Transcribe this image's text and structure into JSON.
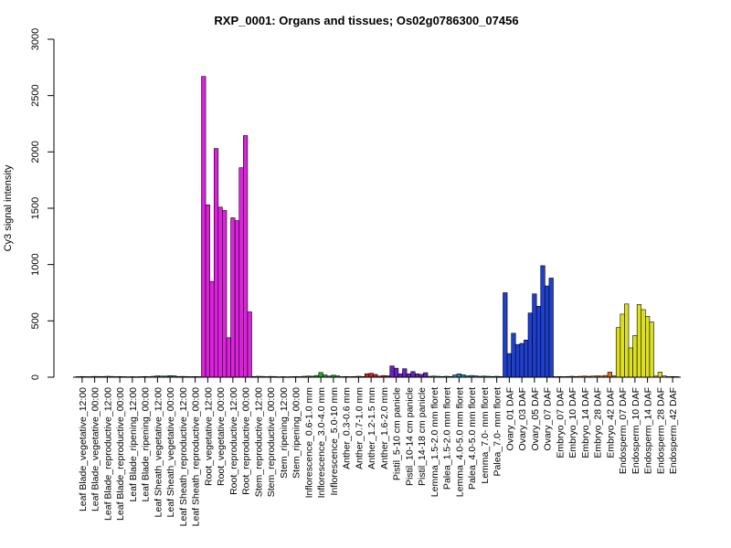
{
  "chart_data": {
    "type": "bar",
    "title": "RXP_0001: Organs and tissues; Os02g0786300_07456",
    "ylabel": "Cy3 signal intensity",
    "xlabel": "",
    "ylim": [
      0,
      3000
    ],
    "yticks": [
      0,
      500,
      1000,
      1500,
      2000,
      2500,
      3000
    ],
    "grid": false,
    "group_labels": [
      "Leaf Blade_vegetative_12:00",
      "Leaf Blade_vegetative_00:00",
      "Leaf Blade_reproductive_12:00",
      "Leaf Blade_reproductive_00:00",
      "Leaf Blade_ripening_12:00",
      "Leaf Blade_ripening_00:00",
      "Leaf Sheath_vegetative_12:00",
      "Leaf Sheath_vegetative_00:00",
      "Leaf Sheath_reproductive_12:00",
      "Leaf Sheath_reproductive_00:00",
      "Root_vegetative_12:00",
      "Root_vegetative_00:00",
      "Root_reproductive_12:00",
      "Root_reproductive_00:00",
      "Stem_reproductive_12:00",
      "Stem_reproductive_00:00",
      "Stem_ripening_12:00",
      "Stem_ripening_00:00",
      "Inflorescence_0.6-1.0 mm",
      "Inflorescence_3.0-4.0 mm",
      "Inflorescence_5.0-10 mm",
      "Anther_0.3-0.6 mm",
      "Anther_0.7-1.0 mm",
      "Anther_1.2-1.5 mm",
      "Anther_1.6-2.0 mm",
      "Pistil_5-10 cm panicle",
      "Pistil_10-14 cm panicle",
      "Pistil_14-18 cm panicle",
      "Lemma_1.5-2.0 mm floret",
      "Palea_1.5-2.0 mm floret",
      "Lemma_4.0-5.0 mm floret",
      "Palea_4.0-5.0 mm floret",
      "Lemma_7.0- mm floret",
      "Palea_7.0- mm floret",
      "Ovary_01 DAF",
      "Ovary_03 DAF",
      "Ovary_05 DAF",
      "Ovary_07 DAF",
      "Embryo_07 DAF",
      "Embryo_10 DAF",
      "Embryo_14 DAF",
      "Embryo_28 DAF",
      "Embryo_42 DAF",
      "Endosperm_07 DAF",
      "Endosperm_10 DAF",
      "Endosperm_14 DAF",
      "Endosperm_28 DAF",
      "Endosperm_42 DAF"
    ],
    "bar_groups": [
      {
        "color": "#808080",
        "values": [
          5,
          6,
          5
        ]
      },
      {
        "color": "#808080",
        "values": [
          5,
          7,
          6
        ]
      },
      {
        "color": "#808080",
        "values": [
          6,
          8,
          7
        ]
      },
      {
        "color": "#808080",
        "values": [
          5,
          6,
          5
        ]
      },
      {
        "color": "#808080",
        "values": [
          4,
          5,
          4
        ]
      },
      {
        "color": "#808080",
        "values": [
          5,
          6,
          5
        ]
      },
      {
        "color": "#2e8b57",
        "values": [
          8,
          12,
          10
        ]
      },
      {
        "color": "#2e8b57",
        "values": [
          10,
          14,
          12
        ]
      },
      {
        "color": "#808080",
        "values": [
          6,
          7,
          6
        ]
      },
      {
        "color": "#808080",
        "values": [
          5,
          6,
          5
        ]
      },
      {
        "color": "#dd22dd",
        "values": [
          2670,
          1530,
          850
        ]
      },
      {
        "color": "#dd22dd",
        "values": [
          2030,
          1510,
          1480
        ]
      },
      {
        "color": "#dd22dd",
        "values": [
          350,
          1415,
          1390
        ]
      },
      {
        "color": "#dd22dd",
        "values": [
          1860,
          2145,
          580
        ]
      },
      {
        "color": "#808080",
        "values": [
          6,
          8,
          7
        ]
      },
      {
        "color": "#808080",
        "values": [
          5,
          7,
          6
        ]
      },
      {
        "color": "#808080",
        "values": [
          4,
          5,
          4
        ]
      },
      {
        "color": "#808080",
        "values": [
          5,
          6,
          5
        ]
      },
      {
        "color": "#22aa22",
        "values": [
          8,
          10,
          9
        ]
      },
      {
        "color": "#22aa22",
        "values": [
          15,
          42,
          20
        ]
      },
      {
        "color": "#22aa22",
        "values": [
          10,
          18,
          12
        ]
      },
      {
        "color": "#cc2222",
        "values": [
          5,
          6,
          5
        ]
      },
      {
        "color": "#cc2222",
        "values": [
          6,
          8,
          6
        ]
      },
      {
        "color": "#cc2222",
        "values": [
          30,
          35,
          25
        ]
      },
      {
        "color": "#cc2222",
        "values": [
          10,
          15,
          12
        ]
      },
      {
        "color": "#6a1fbf",
        "values": [
          100,
          80,
          30
        ]
      },
      {
        "color": "#6a1fbf",
        "values": [
          75,
          30,
          50
        ]
      },
      {
        "color": "#6a1fbf",
        "values": [
          30,
          25,
          40
        ]
      },
      {
        "color": "#1f8fbf",
        "values": [
          8,
          10,
          8
        ]
      },
      {
        "color": "#1f8fbf",
        "values": [
          6,
          8,
          6
        ]
      },
      {
        "color": "#1f8fbf",
        "values": [
          20,
          30,
          22
        ]
      },
      {
        "color": "#1f8fbf",
        "values": [
          12,
          15,
          12
        ]
      },
      {
        "color": "#1f8fbf",
        "values": [
          8,
          10,
          8
        ]
      },
      {
        "color": "#1f8fbf",
        "values": [
          6,
          8,
          6
        ]
      },
      {
        "color": "#1f3fcf",
        "values": [
          750,
          210,
          390
        ]
      },
      {
        "color": "#1f3fcf",
        "values": [
          290,
          300,
          330
        ]
      },
      {
        "color": "#1f3fcf",
        "values": [
          570,
          740,
          630
        ]
      },
      {
        "color": "#1f3fcf",
        "values": [
          990,
          810,
          880
        ]
      },
      {
        "color": "#e07020",
        "values": [
          5,
          6,
          5
        ]
      },
      {
        "color": "#e07020",
        "values": [
          6,
          8,
          6
        ]
      },
      {
        "color": "#e07020",
        "values": [
          8,
          10,
          8
        ]
      },
      {
        "color": "#e07020",
        "values": [
          10,
          12,
          10
        ]
      },
      {
        "color": "#e07020",
        "values": [
          15,
          45,
          12
        ]
      },
      {
        "color": "#dde022",
        "values": [
          440,
          560,
          650
        ]
      },
      {
        "color": "#dde022",
        "values": [
          260,
          370,
          645
        ]
      },
      {
        "color": "#dde022",
        "values": [
          600,
          540,
          490
        ]
      },
      {
        "color": "#dde022",
        "values": [
          10,
          45,
          12
        ]
      },
      {
        "color": "#dde022",
        "values": [
          5,
          6,
          5
        ]
      }
    ]
  }
}
